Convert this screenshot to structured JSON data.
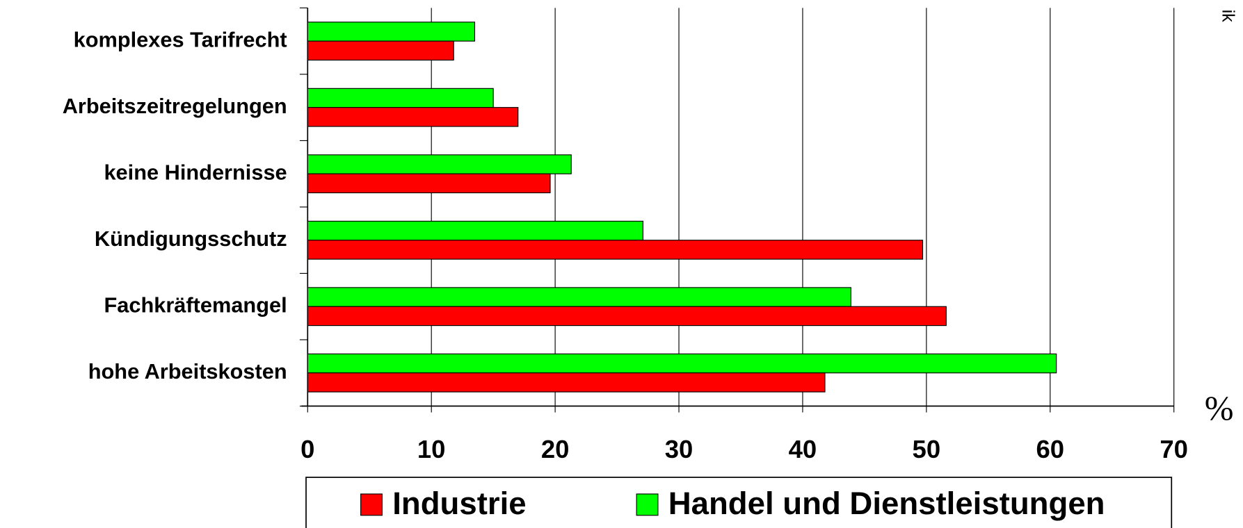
{
  "chart_data": {
    "type": "barh",
    "categories": [
      "komplexes Tarifrecht",
      "Arbeitszeitregelungen",
      "keine Hindernisse",
      "Kündigungsschutz",
      "Fachkräftemangel",
      "hohe Arbeitskosten"
    ],
    "series": [
      {
        "name": "Industrie",
        "color": "#ff0000",
        "values": [
          11.8,
          17,
          19.6,
          49.7,
          51.6,
          41.8
        ]
      },
      {
        "name": "Handel und Dienstleistungen",
        "color": "#00ff00",
        "values": [
          13.5,
          15,
          21.3,
          27.1,
          43.9,
          60.5
        ]
      }
    ],
    "xlim": [
      0,
      70
    ],
    "xticks": [
      0,
      10,
      20,
      30,
      40,
      50,
      60,
      70
    ],
    "x_axis_label": "%",
    "annotation": "ik",
    "grid": true,
    "legend": "bottom"
  }
}
